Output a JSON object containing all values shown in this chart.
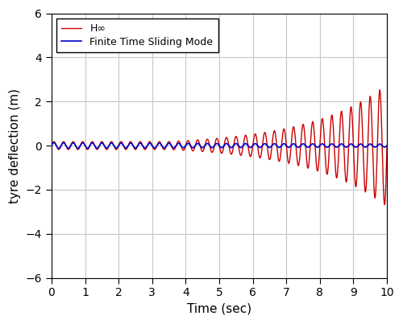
{
  "title": "",
  "xlabel": "Time (sec)",
  "ylabel": "tyre deflection (m)",
  "xlim": [
    0,
    10
  ],
  "ylim": [
    -6,
    6
  ],
  "xticks": [
    0,
    1,
    2,
    3,
    4,
    5,
    6,
    7,
    8,
    9,
    10
  ],
  "yticks": [
    -6,
    -4,
    -2,
    0,
    2,
    4,
    6
  ],
  "blue_label": "Finite Time Sliding Mode",
  "red_label": "H∞",
  "blue_color": "#0000cc",
  "red_color": "#cc0000",
  "background_color": "#ffffff",
  "grid_color": "#c8c8c8",
  "t_end": 10.0,
  "dt": 0.001,
  "figsize": [
    5.0,
    4.03
  ],
  "dpi": 100,
  "blue_amp": 0.13,
  "blue_decay": 0.06,
  "blue_freq": 3.5,
  "red_amp_start": 0.18,
  "red_freq": 3.5,
  "red_growth_rate": 0.42,
  "red_growth_delay": 3.5
}
